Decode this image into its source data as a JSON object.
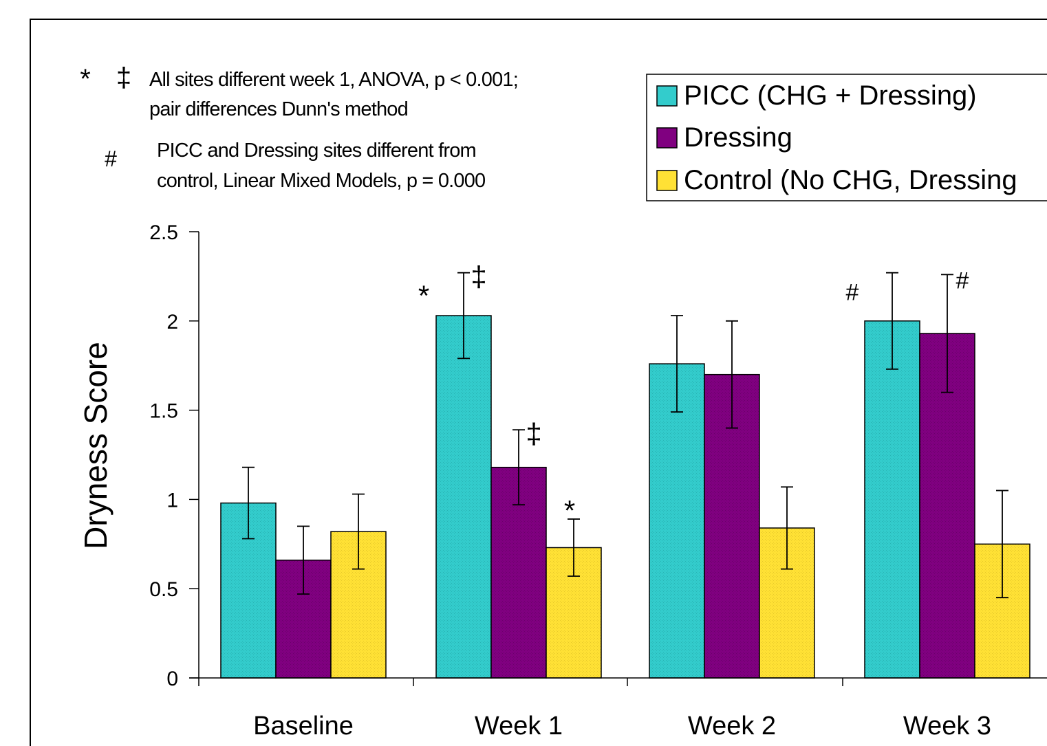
{
  "notes": [
    {
      "symbols": [
        "*",
        "‡"
      ],
      "lines": [
        "All sites different week 1, ANOVA, p < 0.001;",
        "pair differences Dunn's method"
      ]
    },
    {
      "symbols": [
        "#"
      ],
      "lines": [
        "PICC and Dressing sites different from",
        "control, Linear Mixed Models, p = 0.000"
      ]
    }
  ],
  "colors": {
    "picc": "#33cccc",
    "dressing": "#800080",
    "control": "#ffe135",
    "axis": "#000000",
    "frame": "#000000"
  },
  "chart_data": {
    "type": "bar",
    "title": "",
    "xlabel": "",
    "ylabel": "Dryness Score",
    "ylim": [
      0,
      2.5
    ],
    "yticks": [
      0,
      0.5,
      1,
      1.5,
      2,
      2.5
    ],
    "ytick_labels": [
      "0",
      "0.5",
      "1",
      "1.5",
      "2",
      "2.5"
    ],
    "grid": false,
    "legend_position": "top-right",
    "categories": [
      "Baseline",
      "Week 1",
      "Week 2",
      "Week 3"
    ],
    "series": [
      {
        "name": "PICC (CHG + Dressing)",
        "color": "#33cccc",
        "values": [
          0.98,
          2.03,
          1.76,
          2.0
        ],
        "error": [
          0.2,
          0.24,
          0.27,
          0.27
        ]
      },
      {
        "name": "Dressing",
        "color": "#800080",
        "values": [
          0.66,
          1.18,
          1.7,
          1.93
        ],
        "error": [
          0.19,
          0.21,
          0.3,
          0.33
        ]
      },
      {
        "name": "Control (No CHG, Dressing",
        "color": "#ffe135",
        "values": [
          0.82,
          0.73,
          0.84,
          0.75
        ],
        "error": [
          0.21,
          0.16,
          0.23,
          0.3
        ]
      }
    ],
    "annotations": [
      {
        "category": 1,
        "series": 0,
        "side": "left",
        "text": "*"
      },
      {
        "category": 1,
        "series": 0,
        "side": "right",
        "text": "‡"
      },
      {
        "category": 1,
        "series": 1,
        "side": "right",
        "text": "‡"
      },
      {
        "category": 1,
        "series": 2,
        "side": "center",
        "text": "*"
      },
      {
        "category": 3,
        "series": 0,
        "side": "left",
        "text": "#"
      },
      {
        "category": 3,
        "series": 1,
        "side": "right",
        "text": "#"
      }
    ]
  }
}
